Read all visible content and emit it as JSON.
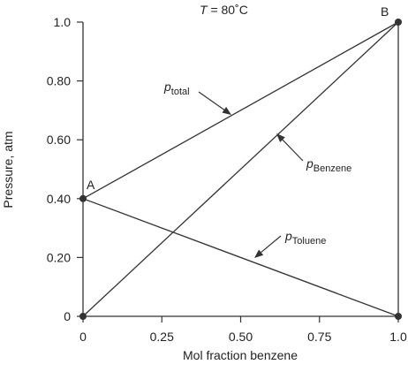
{
  "chart_data": {
    "type": "line",
    "title": "T = 80°C",
    "title_parts": {
      "var": "T",
      "rest": " = 80˚C"
    },
    "xlabel": "Mol fraction benzene",
    "ylabel": "Pressure, atm",
    "xlim": [
      0,
      1.0
    ],
    "ylim": [
      0,
      1.0
    ],
    "x_ticks": [
      0,
      0.25,
      0.5,
      0.75,
      1.0
    ],
    "x_tick_labels": [
      "0",
      "0.25",
      "0.50",
      "0.75",
      "1.0"
    ],
    "y_ticks": [
      0,
      0.2,
      0.4,
      0.6,
      0.8,
      1.0
    ],
    "y_tick_labels": [
      "0",
      "0.20",
      "0.40",
      "0.60",
      "0.80",
      "1.0"
    ],
    "series": [
      {
        "name": "p_total",
        "label_main": "p",
        "label_sub": "total",
        "x": [
          0,
          1.0
        ],
        "y": [
          0.4,
          1.0
        ]
      },
      {
        "name": "p_Benzene",
        "label_main": "p",
        "label_sub": "Benzene",
        "x": [
          0,
          1.0
        ],
        "y": [
          0,
          1.0
        ]
      },
      {
        "name": "p_Toluene",
        "label_main": "p",
        "label_sub": "Toluene",
        "x": [
          0,
          1.0
        ],
        "y": [
          0.4,
          0
        ]
      }
    ],
    "points": [
      {
        "label": "A",
        "x": 0,
        "y": 0.4
      },
      {
        "label": "B",
        "x": 1.0,
        "y": 1.0
      },
      {
        "label": "",
        "x": 0,
        "y": 0
      },
      {
        "label": "",
        "x": 1.0,
        "y": 0
      }
    ],
    "grid": false,
    "legend": "none"
  }
}
